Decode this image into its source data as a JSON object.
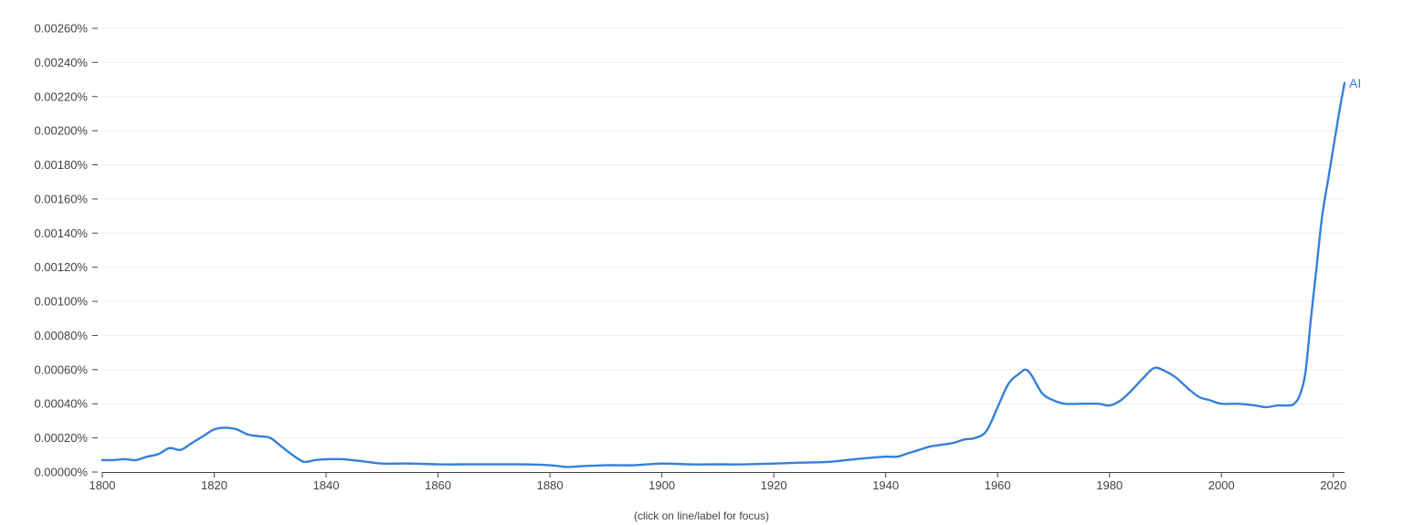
{
  "chart_data": {
    "type": "line",
    "title": "",
    "xlabel": "",
    "ylabel": "",
    "xlim": [
      1800,
      2022
    ],
    "ylim": [
      0,
      0.0026
    ],
    "grid": true,
    "x_ticks": [
      "1800",
      "1820",
      "1840",
      "1860",
      "1880",
      "1900",
      "1920",
      "1940",
      "1960",
      "1980",
      "2000",
      "2020"
    ],
    "x_tick_values": [
      1800,
      1820,
      1840,
      1860,
      1880,
      1900,
      1920,
      1940,
      1960,
      1980,
      2000,
      2020
    ],
    "y_ticks": [
      "0.00000%",
      "0.00020%",
      "0.00040%",
      "0.00060%",
      "0.00080%",
      "0.00100%",
      "0.00120%",
      "0.00140%",
      "0.00160%",
      "0.00180%",
      "0.00200%",
      "0.00220%",
      "0.00240%",
      "0.00260%"
    ],
    "y_tick_values": [
      0,
      0.0002,
      0.0004,
      0.0006,
      0.0008,
      0.001,
      0.0012,
      0.0014,
      0.0016,
      0.0018,
      0.002,
      0.0022,
      0.0024,
      0.0026
    ],
    "series": [
      {
        "name": "AI",
        "color": "#3680d8",
        "x": [
          1800,
          1802,
          1804,
          1806,
          1808,
          1810,
          1812,
          1814,
          1816,
          1818,
          1820,
          1822,
          1824,
          1826,
          1828,
          1830,
          1832,
          1834,
          1836,
          1838,
          1840,
          1843,
          1846,
          1850,
          1855,
          1860,
          1865,
          1870,
          1875,
          1880,
          1883,
          1886,
          1890,
          1895,
          1900,
          1905,
          1910,
          1915,
          1920,
          1925,
          1930,
          1933,
          1936,
          1940,
          1942,
          1944,
          1946,
          1948,
          1950,
          1952,
          1954,
          1956,
          1958,
          1960,
          1962,
          1964,
          1965,
          1966,
          1968,
          1970,
          1972,
          1975,
          1978,
          1980,
          1982,
          1984,
          1986,
          1988,
          1990,
          1992,
          1994,
          1996,
          1998,
          2000,
          2003,
          2006,
          2008,
          2010,
          2012,
          2013,
          2014,
          2015,
          2016,
          2017,
          2018,
          2019,
          2020,
          2021,
          2022
        ],
        "values": [
          7e-05,
          7e-05,
          7.5e-05,
          7e-05,
          9e-05,
          0.000105,
          0.00014,
          0.00013,
          0.00017,
          0.00021,
          0.00025,
          0.00026,
          0.00025,
          0.00022,
          0.00021,
          0.0002,
          0.00015,
          0.0001,
          6e-05,
          7e-05,
          7.5e-05,
          7.5e-05,
          6.5e-05,
          5e-05,
          5e-05,
          4.5e-05,
          4.5e-05,
          4.5e-05,
          4.5e-05,
          4e-05,
          3e-05,
          3.5e-05,
          4e-05,
          4e-05,
          5e-05,
          4.5e-05,
          4.5e-05,
          4.5e-05,
          5e-05,
          5.5e-05,
          6e-05,
          7e-05,
          8e-05,
          9e-05,
          9e-05,
          0.00011,
          0.00013,
          0.00015,
          0.00016,
          0.00017,
          0.00019,
          0.0002,
          0.00024,
          0.00038,
          0.00052,
          0.00058,
          0.0006,
          0.00057,
          0.00046,
          0.00042,
          0.0004,
          0.0004,
          0.0004,
          0.00039,
          0.00042,
          0.00048,
          0.00055,
          0.00061,
          0.00059,
          0.00055,
          0.00049,
          0.00044,
          0.00042,
          0.0004,
          0.0004,
          0.00039,
          0.00038,
          0.00039,
          0.00039,
          0.0004,
          0.00045,
          0.00058,
          0.0009,
          0.0012,
          0.0015,
          0.0017,
          0.0019,
          0.0021,
          0.00228
        ]
      }
    ]
  },
  "footnote": "(click on line/label for focus)"
}
